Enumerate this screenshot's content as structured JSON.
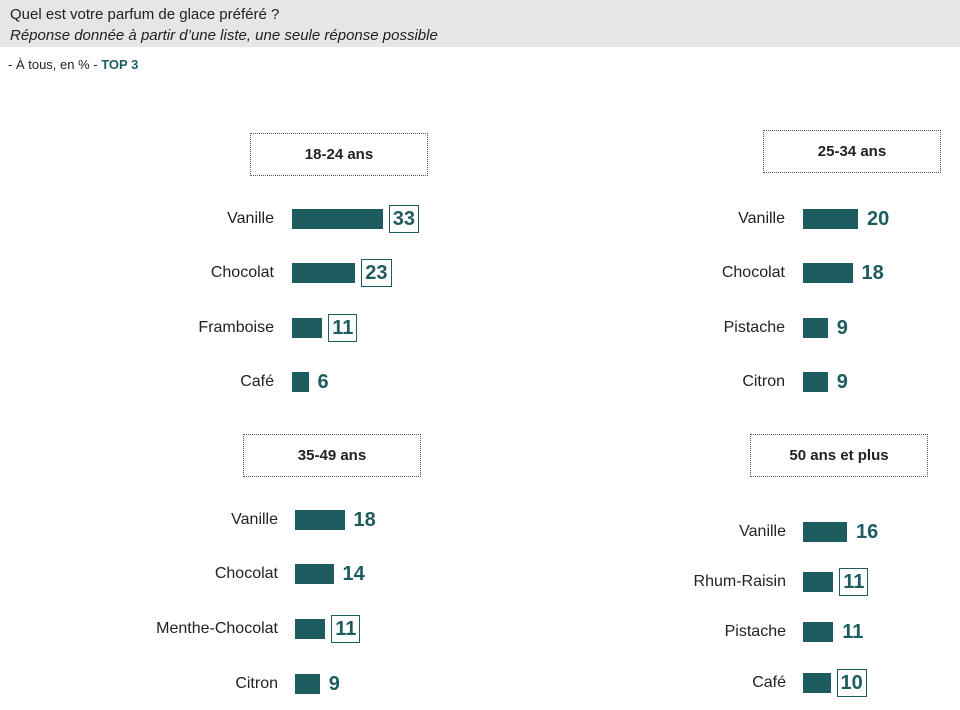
{
  "header": {
    "question": "Quel est votre parfum de glace préféré ?",
    "subtitle": "Réponse donnée à partir d’une liste, une seule réponse possible"
  },
  "base": {
    "prefix": "- À tous, en % -",
    "highlight": "TOP 3"
  },
  "colors": {
    "bar": "#1d5c5f",
    "header_bg": "#e6e6e6"
  },
  "chart_data": [
    {
      "type": "bar",
      "title": "18-24 ans",
      "categories": [
        "Vanille",
        "Chocolat",
        "Framboise",
        "Café"
      ],
      "values": [
        33,
        23,
        11,
        6
      ],
      "boxed": [
        true,
        true,
        true,
        false
      ]
    },
    {
      "type": "bar",
      "title": "25-34 ans",
      "categories": [
        "Vanille",
        "Chocolat",
        "Pistache",
        "Citron"
      ],
      "values": [
        20,
        18,
        9,
        9
      ],
      "boxed": [
        false,
        false,
        false,
        false
      ]
    },
    {
      "type": "bar",
      "title": "35-49 ans",
      "categories": [
        "Vanille",
        "Chocolat",
        "Menthe-Chocolat",
        "Citron"
      ],
      "values": [
        18,
        14,
        11,
        9
      ],
      "boxed": [
        false,
        false,
        true,
        false
      ]
    },
    {
      "type": "bar",
      "title": "50 ans et plus",
      "categories": [
        "Vanille",
        "Rhum-Raisin",
        "Pistache",
        "Café"
      ],
      "values": [
        16,
        11,
        11,
        10
      ],
      "boxed": [
        false,
        true,
        false,
        true
      ]
    }
  ]
}
